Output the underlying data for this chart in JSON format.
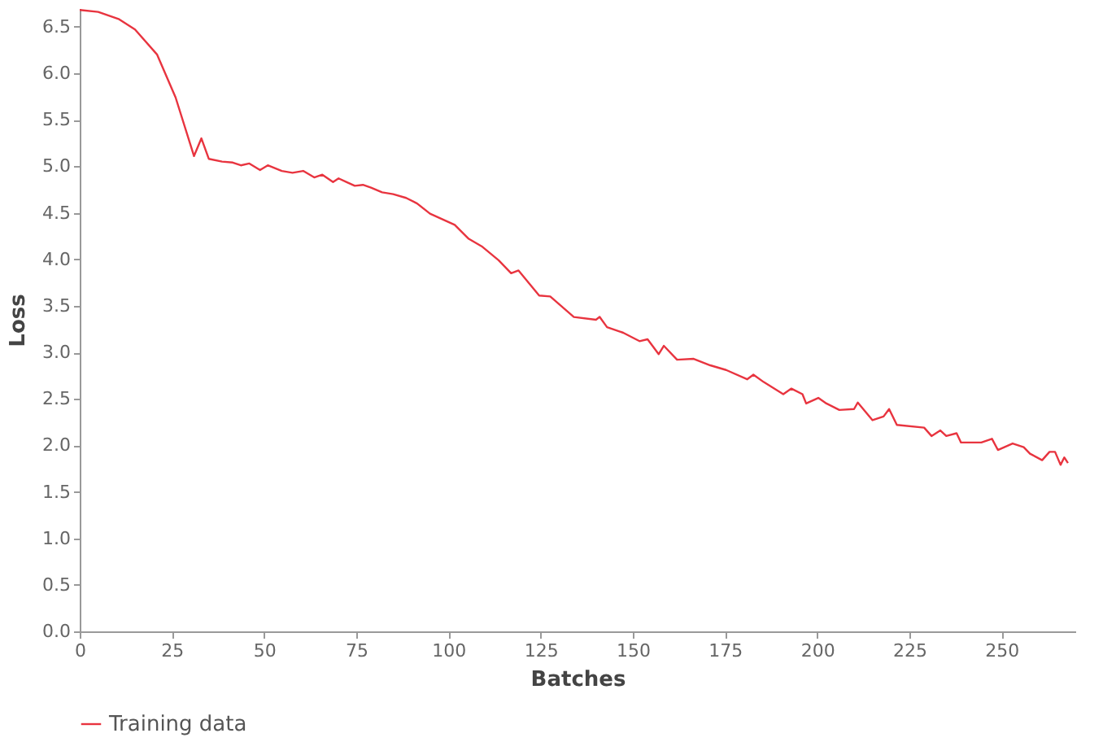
{
  "chart_data": {
    "type": "line",
    "xlabel": "Batches",
    "ylabel": "Loss",
    "xlim": [
      0,
      270
    ],
    "xticks": [
      0,
      25,
      50,
      75,
      100,
      125,
      150,
      175,
      200,
      225,
      250
    ],
    "ylim": [
      0,
      6.7
    ],
    "yticks": [
      {
        "value": 0,
        "label": "0.0"
      },
      0.5,
      {
        "value": 1,
        "label": "1.0"
      },
      1.5,
      {
        "value": 2,
        "label": "2.0"
      },
      2.5,
      {
        "value": 3,
        "label": "3.0"
      },
      3.5,
      {
        "value": 4,
        "label": "4.0"
      },
      4.5,
      {
        "value": 5,
        "label": "5.0"
      },
      5.5,
      {
        "value": 6,
        "label": "6.0"
      },
      6.5
    ],
    "grid": false,
    "legend": "bottom",
    "marker": "none",
    "line_style": "solid",
    "x": [
      0,
      5,
      10.7,
      15,
      21,
      26,
      31,
      33,
      35,
      38.6,
      41.5,
      43.7,
      46,
      48.9,
      51,
      54.8,
      57.7,
      60.6,
      63.6,
      65.8,
      68.7,
      70.2,
      72.4,
      74.6,
      76.8,
      79,
      82,
      85,
      88.5,
      91.5,
      95,
      101.7,
      105.5,
      109,
      113.6,
      117,
      119,
      124.6,
      127.6,
      134,
      140,
      141,
      143,
      147.4,
      151.8,
      154,
      157,
      158.4,
      162,
      166.5,
      171,
      175.3,
      181,
      182.7,
      185.5,
      190.8,
      193,
      196,
      197,
      200.3,
      202.5,
      206,
      210,
      211,
      215,
      218,
      219.5,
      221.6,
      229,
      231,
      233.4,
      235,
      237.8,
      239,
      244.5,
      247.4,
      249,
      253,
      256,
      257.7,
      261,
      263,
      264.5,
      266,
      267,
      268
    ],
    "series": [
      {
        "name": "Training data",
        "color": "#e8343f",
        "values": [
          6.68,
          6.66,
          6.58,
          6.47,
          6.2,
          5.74,
          5.11,
          5.3,
          5.08,
          5.05,
          5.04,
          5.01,
          5.03,
          4.96,
          5.01,
          4.95,
          4.93,
          4.95,
          4.88,
          4.91,
          4.83,
          4.87,
          4.83,
          4.79,
          4.8,
          4.77,
          4.72,
          4.7,
          4.66,
          4.6,
          4.49,
          4.37,
          4.22,
          4.14,
          3.99,
          3.85,
          3.88,
          3.61,
          3.6,
          3.38,
          3.35,
          3.38,
          3.27,
          3.21,
          3.12,
          3.14,
          2.98,
          3.07,
          2.92,
          2.93,
          2.86,
          2.81,
          2.71,
          2.76,
          2.68,
          2.55,
          2.61,
          2.55,
          2.45,
          2.51,
          2.45,
          2.38,
          2.39,
          2.46,
          2.27,
          2.31,
          2.39,
          2.22,
          2.19,
          2.1,
          2.16,
          2.1,
          2.13,
          2.03,
          2.03,
          2.07,
          1.95,
          2.02,
          1.98,
          1.91,
          1.84,
          1.93,
          1.93,
          1.79,
          1.87,
          1.81
        ]
      }
    ]
  }
}
